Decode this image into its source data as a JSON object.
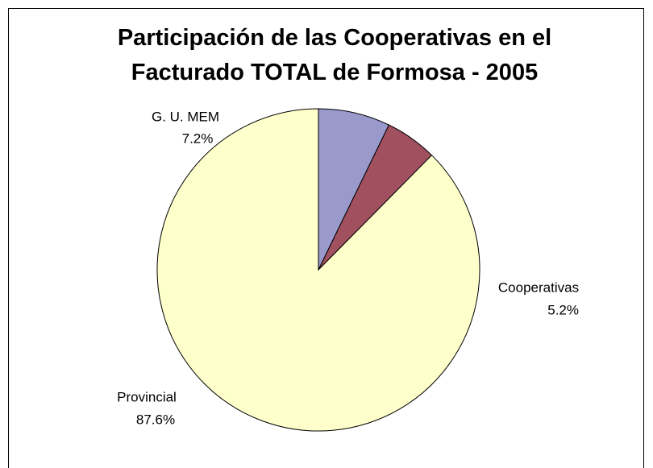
{
  "chart_data": {
    "type": "pie",
    "title": "Participación de las Cooperativas en el Facturado TOTAL de Formosa - 2005",
    "categories": [
      "G. U. MEM",
      "Cooperativas",
      "Provincial"
    ],
    "values": [
      7.2,
      5.2,
      87.6
    ],
    "value_labels": [
      "7.2%",
      "5.2%",
      "87.6%"
    ],
    "colors": [
      "#9999cc",
      "#a0505e",
      "#ffffcc"
    ]
  }
}
